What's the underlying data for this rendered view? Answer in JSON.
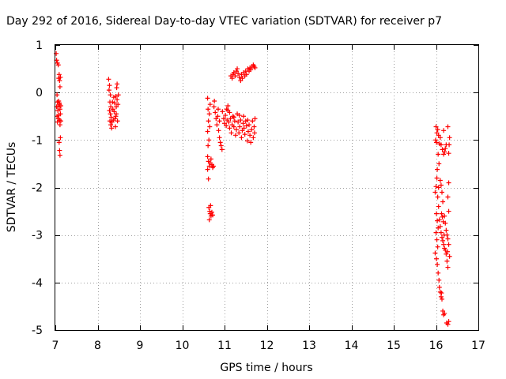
{
  "chart_data": {
    "type": "scatter",
    "title": "Day 292 of 2016, Sidereal Day-to-day VTEC variation (SDTVAR) for receiver p7",
    "xlabel": "GPS time / hours",
    "ylabel": "SDTVAR / TECUs",
    "xlim": [
      7,
      17
    ],
    "ylim": [
      -5,
      1
    ],
    "x_ticks": [
      "7",
      "8",
      "9",
      "10",
      "11",
      "12",
      "13",
      "14",
      "15",
      "16",
      "17"
    ],
    "y_ticks": [
      "1",
      "0",
      "-1",
      "-2",
      "-3",
      "-4",
      "-5"
    ],
    "grid": true,
    "marker": "+",
    "color": "#ff0000",
    "series": [
      {
        "values": [
          [
            7.02,
            0.82
          ],
          [
            7.03,
            0.68
          ],
          [
            7.05,
            0.62
          ],
          [
            7.07,
            0.58
          ],
          [
            7.04,
            -0.05
          ],
          [
            7.05,
            -0.2
          ],
          [
            7.03,
            -0.3
          ],
          [
            7.06,
            -0.38
          ],
          [
            7.04,
            -0.5
          ],
          [
            7.07,
            -0.55
          ],
          [
            7.05,
            -0.62
          ],
          [
            7.08,
            -0.48
          ],
          [
            7.06,
            -0.3
          ],
          [
            7.09,
            -0.22
          ],
          [
            7.08,
            0.3
          ],
          [
            7.09,
            0.38
          ],
          [
            7.1,
            0.25
          ],
          [
            7.11,
            0.12
          ],
          [
            7.12,
            0.32
          ],
          [
            7.1,
            -0.25
          ],
          [
            7.11,
            -0.35
          ],
          [
            7.12,
            -0.45
          ],
          [
            7.1,
            -0.58
          ],
          [
            7.13,
            -0.6
          ],
          [
            7.11,
            -0.68
          ],
          [
            7.12,
            -0.95
          ],
          [
            7.09,
            -1.05
          ],
          [
            7.1,
            -1.22
          ],
          [
            7.11,
            -1.32
          ],
          [
            7.08,
            -0.18
          ],
          [
            7.13,
            -0.28
          ],
          [
            8.26,
            0.28
          ],
          [
            8.28,
            0.15
          ],
          [
            8.27,
            0.05
          ],
          [
            8.3,
            -0.05
          ],
          [
            8.29,
            -0.2
          ],
          [
            8.31,
            -0.3
          ],
          [
            8.28,
            -0.38
          ],
          [
            8.3,
            -0.45
          ],
          [
            8.32,
            -0.52
          ],
          [
            8.29,
            -0.6
          ],
          [
            8.31,
            -0.68
          ],
          [
            8.33,
            -0.75
          ],
          [
            8.35,
            -0.2
          ],
          [
            8.36,
            -0.35
          ],
          [
            8.34,
            -0.62
          ],
          [
            8.38,
            -0.1
          ],
          [
            8.4,
            -0.22
          ],
          [
            8.39,
            -0.4
          ],
          [
            8.41,
            -0.55
          ],
          [
            8.42,
            -0.72
          ],
          [
            8.43,
            -0.08
          ],
          [
            8.44,
            -0.3
          ],
          [
            8.45,
            0.1
          ],
          [
            8.46,
            0.18
          ],
          [
            8.44,
            -0.45
          ],
          [
            8.47,
            -0.6
          ],
          [
            8.48,
            -0.25
          ],
          [
            8.49,
            -0.05
          ],
          [
            8.46,
            -0.15
          ],
          [
            8.43,
            -0.5
          ],
          [
            8.37,
            -0.58
          ],
          [
            10.6,
            -0.12
          ],
          [
            10.61,
            -0.35
          ],
          [
            10.62,
            -0.6
          ],
          [
            10.6,
            -0.82
          ],
          [
            10.63,
            -1.0
          ],
          [
            10.61,
            -1.12
          ],
          [
            10.64,
            -0.45
          ],
          [
            10.65,
            -0.72
          ],
          [
            10.66,
            -0.25
          ],
          [
            10.6,
            -1.35
          ],
          [
            10.62,
            -1.45
          ],
          [
            10.64,
            -1.55
          ],
          [
            10.6,
            -1.62
          ],
          [
            10.62,
            -1.82
          ],
          [
            10.66,
            -1.48
          ],
          [
            10.7,
            -1.52
          ],
          [
            10.72,
            -1.58
          ],
          [
            10.68,
            -1.4
          ],
          [
            10.74,
            -1.55
          ],
          [
            10.63,
            -2.42
          ],
          [
            10.65,
            -2.5
          ],
          [
            10.66,
            -2.55
          ],
          [
            10.68,
            -2.6
          ],
          [
            10.7,
            -2.52
          ],
          [
            10.64,
            -2.68
          ],
          [
            10.72,
            -2.58
          ],
          [
            10.67,
            -2.38
          ],
          [
            10.75,
            -0.3
          ],
          [
            10.78,
            -0.42
          ],
          [
            10.8,
            -0.55
          ],
          [
            10.82,
            -0.68
          ],
          [
            10.84,
            -0.5
          ],
          [
            10.76,
            -0.18
          ],
          [
            10.86,
            -0.8
          ],
          [
            10.88,
            -0.95
          ],
          [
            10.9,
            -1.05
          ],
          [
            10.92,
            -1.12
          ],
          [
            10.94,
            -1.2
          ],
          [
            10.85,
            -0.35
          ],
          [
            10.88,
            -0.6
          ],
          [
            10.95,
            -0.4
          ],
          [
            10.98,
            -0.55
          ],
          [
            11.0,
            -0.65
          ],
          [
            11.02,
            -0.48
          ],
          [
            11.04,
            -0.7
          ],
          [
            11.06,
            -0.58
          ],
          [
            11.08,
            -0.38
          ],
          [
            11.1,
            -0.62
          ],
          [
            11.12,
            -0.75
          ],
          [
            11.14,
            -0.55
          ],
          [
            11.16,
            -0.85
          ],
          [
            11.18,
            -0.68
          ],
          [
            11.2,
            -0.5
          ],
          [
            11.22,
            -0.72
          ],
          [
            11.24,
            -0.6
          ],
          [
            11.26,
            -0.9
          ],
          [
            11.28,
            -0.78
          ],
          [
            11.3,
            -0.45
          ],
          [
            11.32,
            -0.62
          ],
          [
            11.34,
            -0.85
          ],
          [
            11.36,
            -0.72
          ],
          [
            11.38,
            -0.58
          ],
          [
            11.4,
            -0.95
          ],
          [
            11.42,
            -0.8
          ],
          [
            11.44,
            -0.65
          ],
          [
            11.46,
            -0.75
          ],
          [
            11.48,
            -0.88
          ],
          [
            11.5,
            -0.6
          ],
          [
            11.52,
            -0.7
          ],
          [
            11.54,
            -1.02
          ],
          [
            11.56,
            -0.82
          ],
          [
            11.58,
            -0.68
          ],
          [
            11.6,
            -0.9
          ],
          [
            11.62,
            -1.05
          ],
          [
            11.64,
            -0.78
          ],
          [
            11.66,
            -0.6
          ],
          [
            11.68,
            -0.95
          ],
          [
            11.7,
            -0.72
          ],
          [
            11.72,
            -0.55
          ],
          [
            11.71,
            -0.85
          ],
          [
            11.05,
            -0.35
          ],
          [
            11.08,
            -0.28
          ],
          [
            11.12,
            -0.42
          ],
          [
            11.22,
            -0.52
          ],
          [
            11.35,
            -0.48
          ],
          [
            11.45,
            -0.5
          ],
          [
            11.55,
            -0.58
          ],
          [
            11.15,
            0.35
          ],
          [
            11.18,
            0.3
          ],
          [
            11.2,
            0.38
          ],
          [
            11.22,
            0.42
          ],
          [
            11.25,
            0.35
          ],
          [
            11.28,
            0.45
          ],
          [
            11.3,
            0.5
          ],
          [
            11.32,
            0.4
          ],
          [
            11.35,
            0.32
          ],
          [
            11.38,
            0.25
          ],
          [
            11.4,
            0.38
          ],
          [
            11.42,
            0.3
          ],
          [
            11.45,
            0.42
          ],
          [
            11.48,
            0.35
          ],
          [
            11.5,
            0.45
          ],
          [
            11.52,
            0.38
          ],
          [
            11.55,
            0.5
          ],
          [
            11.58,
            0.45
          ],
          [
            11.6,
            0.52
          ],
          [
            11.62,
            0.48
          ],
          [
            11.65,
            0.55
          ],
          [
            11.68,
            0.58
          ],
          [
            11.7,
            0.55
          ],
          [
            11.72,
            0.52
          ],
          [
            16.0,
            -0.72
          ],
          [
            16.02,
            -0.85
          ],
          [
            15.99,
            -1.0
          ],
          [
            16.01,
            -1.05
          ],
          [
            16.04,
            -0.78
          ],
          [
            16.06,
            -0.9
          ],
          [
            16.08,
            -1.08
          ],
          [
            16.05,
            -1.3
          ],
          [
            16.07,
            -1.5
          ],
          [
            16.03,
            -1.62
          ],
          [
            16.02,
            -1.8
          ],
          [
            16.0,
            -1.98
          ],
          [
            15.98,
            -2.1
          ],
          [
            16.04,
            -2.2
          ],
          [
            16.06,
            -2.4
          ],
          [
            16.01,
            -2.55
          ],
          [
            16.03,
            -2.7
          ],
          [
            16.05,
            -2.85
          ],
          [
            16.0,
            -2.95
          ],
          [
            16.02,
            -3.1
          ],
          [
            16.04,
            -3.25
          ],
          [
            15.98,
            -3.38
          ],
          [
            16.01,
            -3.5
          ],
          [
            16.03,
            -3.62
          ],
          [
            16.05,
            -3.8
          ],
          [
            16.07,
            -3.95
          ],
          [
            16.08,
            -4.1
          ],
          [
            16.1,
            -4.2
          ],
          [
            16.12,
            -4.3
          ],
          [
            16.14,
            -4.35
          ],
          [
            16.13,
            -4.22
          ],
          [
            16.16,
            -4.6
          ],
          [
            16.18,
            -4.68
          ],
          [
            16.2,
            -4.65
          ],
          [
            16.1,
            -0.95
          ],
          [
            16.12,
            -1.1
          ],
          [
            16.15,
            -1.2
          ],
          [
            16.18,
            -1.3
          ],
          [
            16.2,
            -1.25
          ],
          [
            16.22,
            -1.18
          ],
          [
            16.24,
            -1.1
          ],
          [
            16.1,
            -1.85
          ],
          [
            16.12,
            -1.95
          ],
          [
            16.14,
            -2.1
          ],
          [
            16.16,
            -2.3
          ],
          [
            16.13,
            -2.55
          ],
          [
            16.15,
            -2.62
          ],
          [
            16.17,
            -2.72
          ],
          [
            16.1,
            -2.82
          ],
          [
            16.12,
            -2.95
          ],
          [
            16.14,
            -3.05
          ],
          [
            16.16,
            -3.12
          ],
          [
            16.18,
            -3.2
          ],
          [
            16.2,
            -3.28
          ],
          [
            16.22,
            -3.32
          ],
          [
            16.24,
            -3.4
          ],
          [
            16.26,
            -3.55
          ],
          [
            16.28,
            -3.68
          ],
          [
            16.2,
            -2.6
          ],
          [
            16.22,
            -2.75
          ],
          [
            16.24,
            -2.9
          ],
          [
            16.26,
            -3.0
          ],
          [
            16.28,
            -3.08
          ],
          [
            16.3,
            -3.2
          ],
          [
            16.32,
            -3.45
          ],
          [
            16.3,
            -2.5
          ],
          [
            16.28,
            -2.2
          ],
          [
            16.3,
            -1.9
          ],
          [
            16.31,
            -1.1
          ],
          [
            16.32,
            -0.95
          ],
          [
            16.3,
            -1.28
          ],
          [
            16.28,
            -0.72
          ],
          [
            16.25,
            -4.85
          ],
          [
            16.28,
            -4.88
          ],
          [
            16.3,
            -4.82
          ],
          [
            16.18,
            -0.8
          ],
          [
            16.06,
            -2.0
          ],
          [
            16.08,
            -2.68
          ],
          [
            16.19,
            -3.0
          ],
          [
            16.27,
            -3.35
          ]
        ]
      }
    ]
  }
}
